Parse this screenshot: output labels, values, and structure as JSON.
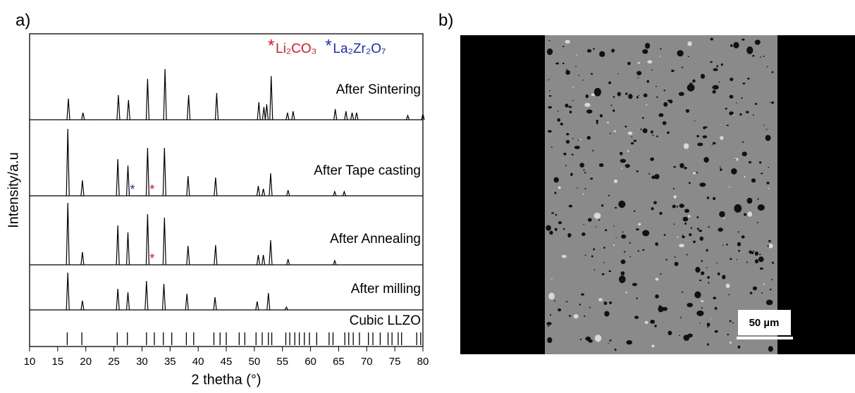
{
  "chart_data": {
    "type": "line",
    "panel_label": "a)",
    "xlabel": "2 thetha (°)",
    "ylabel": "Intensity/a.u",
    "xlim": [
      10,
      80
    ],
    "xticks": [
      10,
      15,
      20,
      25,
      30,
      35,
      40,
      45,
      50,
      55,
      60,
      65,
      70,
      75,
      80
    ],
    "ylim": [
      0,
      100
    ],
    "series": [
      {
        "name": "After Sintering",
        "color": "#000000",
        "x": [
          16.9,
          19.5,
          25.8,
          27.6,
          31.0,
          34.1,
          38.3,
          43.3,
          50.8,
          51.7,
          52.2,
          53.0,
          55.9,
          56.9,
          64.4,
          66.3,
          67.4,
          68.2,
          77.3,
          80.0
        ],
        "values": [
          30,
          10,
          35,
          28,
          58,
          72,
          35,
          38,
          25,
          18,
          22,
          62,
          10,
          12,
          15,
          12,
          10,
          10,
          6,
          8
        ]
      },
      {
        "name": "After Tape casting",
        "color": "#000000",
        "x": [
          16.8,
          19.4,
          25.7,
          27.5,
          31.0,
          34.0,
          38.2,
          43.1,
          50.7,
          51.6,
          52.9,
          56.0,
          64.3,
          66.0
        ],
        "values": [
          95,
          22,
          52,
          43,
          68,
          68,
          28,
          26,
          14,
          10,
          32,
          8,
          6,
          6
        ]
      },
      {
        "name": "After Annealing",
        "color": "#000000",
        "x": [
          16.8,
          19.4,
          25.7,
          27.5,
          31.0,
          34.0,
          38.2,
          43.1,
          50.7,
          51.6,
          52.9,
          56.0,
          64.3
        ],
        "values": [
          88,
          18,
          56,
          46,
          72,
          67,
          27,
          28,
          14,
          14,
          35,
          8,
          6
        ]
      },
      {
        "name": "After milling",
        "color": "#000000",
        "x": [
          16.8,
          19.4,
          25.7,
          27.5,
          30.8,
          33.9,
          38.0,
          43.0,
          50.5,
          52.5,
          55.7
        ],
        "values": [
          53,
          13,
          30,
          25,
          41,
          37,
          23,
          18,
          12,
          24,
          4
        ]
      }
    ],
    "reference": {
      "name": "Cubic LLZO",
      "x": [
        16.7,
        19.3,
        25.6,
        27.4,
        30.8,
        32.2,
        33.8,
        35.3,
        37.9,
        39.2,
        42.8,
        43.9,
        45.0,
        47.3,
        48.3,
        50.3,
        51.4,
        52.5,
        53.1,
        55.6,
        56.3,
        57.2,
        58.0,
        58.9,
        59.8,
        61.1,
        63.3,
        64.0,
        66.1,
        66.8,
        67.6,
        68.7,
        70.3,
        71.1,
        72.4,
        73.8,
        74.5,
        75.6,
        76.2,
        78.9,
        79.6
      ]
    },
    "markers": [
      {
        "symbol": "*",
        "name": "Li₂CO₃",
        "color": "#e8141b",
        "x": [
          31.8,
          31.8
        ],
        "trace": [
          "After Tape casting",
          "After Annealing"
        ]
      },
      {
        "symbol": "*",
        "name": "La₂Zr₂O₇",
        "color": "#1b2fb4",
        "x": [
          28.3
        ],
        "trace": [
          "After Tape casting"
        ]
      }
    ]
  },
  "panel_b": {
    "label": "b)",
    "scale_bar": "50 µm"
  }
}
